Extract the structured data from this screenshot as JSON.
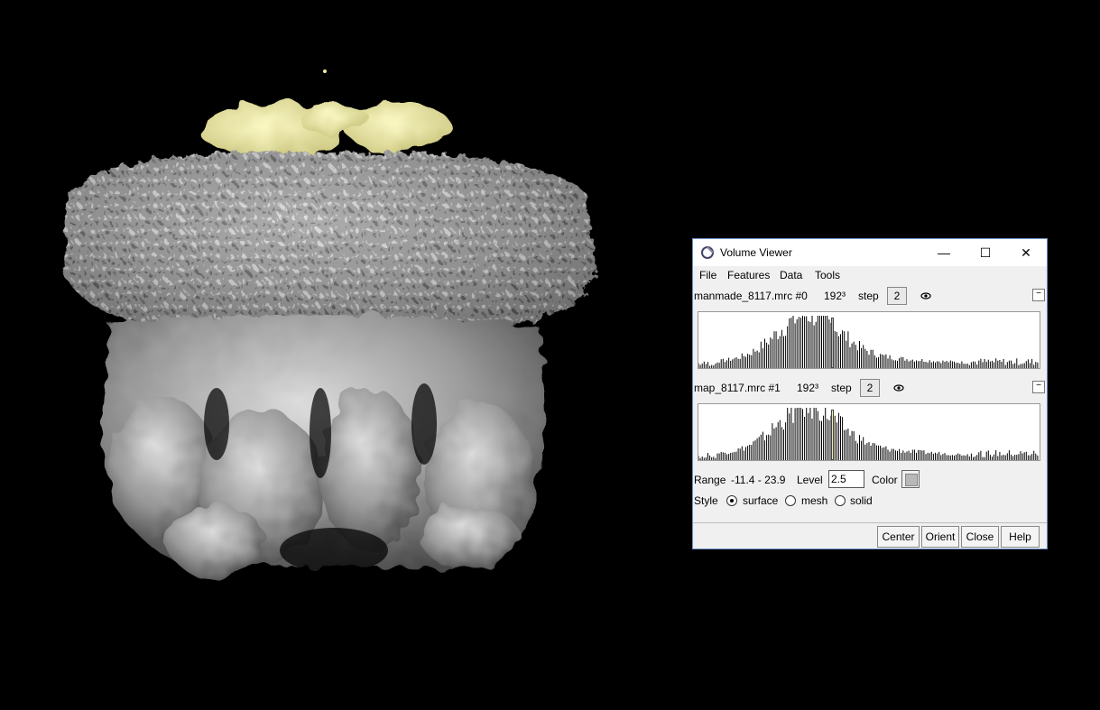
{
  "window": {
    "title": "Volume Viewer",
    "controls": {
      "minimize": "—",
      "maximize": "☐",
      "close": "✕"
    }
  },
  "menu": [
    "File",
    "Features",
    "Data",
    "Tools"
  ],
  "volumes": [
    {
      "name": "manmade_8117.mrc #0",
      "size": "192³",
      "step_label": "step",
      "step": "2",
      "threshold_color": "#b8b8b8"
    },
    {
      "name": "map_8117.mrc #1",
      "size": "192³",
      "step_label": "step",
      "step": "2",
      "threshold_color": "#f2eca8"
    }
  ],
  "controls": {
    "range_label": "Range",
    "range_value": "-11.4 - 23.9",
    "level_label": "Level",
    "level_value": "2.5",
    "color_label": "Color",
    "style_label": "Style",
    "styles": [
      {
        "label": "surface",
        "selected": true
      },
      {
        "label": "mesh",
        "selected": false
      },
      {
        "label": "solid",
        "selected": false
      }
    ]
  },
  "buttons": [
    "Center",
    "Orient",
    "Close",
    "Help"
  ],
  "colors": {
    "surface_gray": "#a8a8a8",
    "surface_yellow": "#eeeba0",
    "background": "#000000"
  },
  "icons": {
    "eye": "eye-icon",
    "collapse": "collapse-icon",
    "app": "chimera-icon"
  }
}
